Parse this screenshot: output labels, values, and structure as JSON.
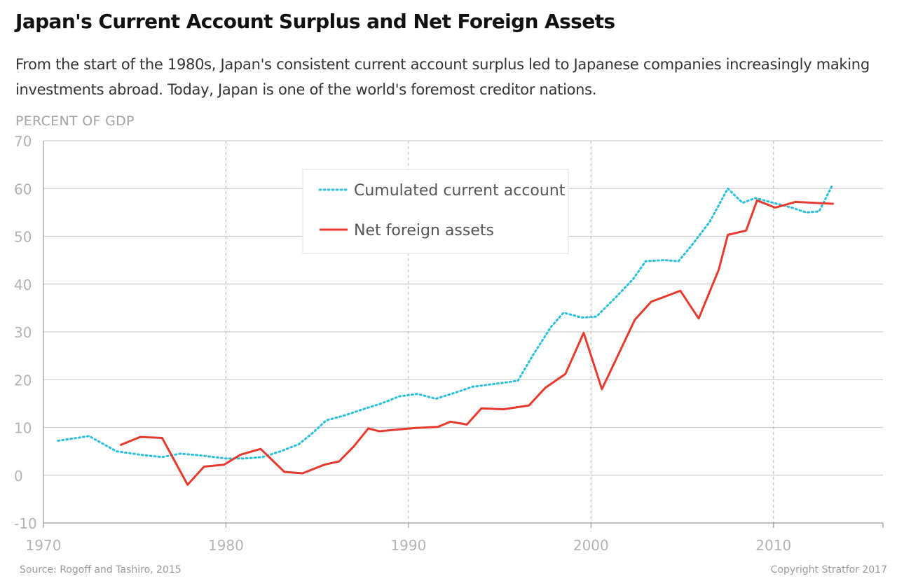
{
  "header": {
    "title": "Japan's Current Account Surplus and Net Foreign Assets",
    "subtitle": "From the start of the 1980s, Japan's consistent current account surplus led to Japanese companies increasingly making investments abroad. Today, Japan is one of the world's foremost creditor nations."
  },
  "footer": {
    "source": "Source: Rogoff and Tashiro, 2015",
    "copyright": "Copyright Stratfor 2017"
  },
  "chart_data": {
    "type": "line",
    "ylabel": "PERCENT OF GDP",
    "xlim": [
      1970,
      2016
    ],
    "ylim": [
      -10,
      70
    ],
    "x_ticks": [
      1970,
      1980,
      1990,
      2000,
      2010
    ],
    "y_ticks": [
      -10,
      0,
      10,
      20,
      30,
      40,
      50,
      60,
      70
    ],
    "grid": {
      "horizontal": true,
      "vertical_dashed": true
    },
    "legend_position": "top-center",
    "series": [
      {
        "name": "Cumulated current account",
        "color": "#2bbfd9",
        "style": "dotted",
        "points": [
          [
            1970.8,
            7.2
          ],
          [
            1972.5,
            8.2
          ],
          [
            1974.0,
            5.0
          ],
          [
            1975.5,
            4.2
          ],
          [
            1976.5,
            3.8
          ],
          [
            1977.5,
            4.5
          ],
          [
            1978.5,
            4.2
          ],
          [
            1980.0,
            3.5
          ],
          [
            1981.0,
            3.5
          ],
          [
            1982.0,
            3.8
          ],
          [
            1983.0,
            5.0
          ],
          [
            1984.0,
            6.5
          ],
          [
            1984.8,
            9.0
          ],
          [
            1985.5,
            11.5
          ],
          [
            1986.5,
            12.5
          ],
          [
            1987.5,
            13.8
          ],
          [
            1988.5,
            15.0
          ],
          [
            1989.5,
            16.5
          ],
          [
            1990.5,
            17.0
          ],
          [
            1991.5,
            16.0
          ],
          [
            1992.5,
            17.2
          ],
          [
            1993.5,
            18.5
          ],
          [
            1994.5,
            19.0
          ],
          [
            1995.5,
            19.5
          ],
          [
            1996.0,
            19.8
          ],
          [
            1996.8,
            25.0
          ],
          [
            1997.8,
            31.0
          ],
          [
            1998.5,
            34.0
          ],
          [
            1999.5,
            33.0
          ],
          [
            2000.3,
            33.2
          ],
          [
            2001.3,
            37.0
          ],
          [
            2002.3,
            41.0
          ],
          [
            2003.0,
            44.8
          ],
          [
            2004.0,
            45.0
          ],
          [
            2004.8,
            44.8
          ],
          [
            2005.5,
            48.0
          ],
          [
            2006.5,
            53.0
          ],
          [
            2007.5,
            60.0
          ],
          [
            2008.3,
            57.0
          ],
          [
            2009.0,
            58.0
          ],
          [
            2010.0,
            57.0
          ],
          [
            2011.0,
            56.0
          ],
          [
            2011.8,
            55.0
          ],
          [
            2012.5,
            55.2
          ],
          [
            2013.2,
            60.5
          ]
        ]
      },
      {
        "name": "Net foreign assets",
        "color": "#e63a2e",
        "style": "solid",
        "points": [
          [
            1974.2,
            6.3
          ],
          [
            1975.3,
            8.0
          ],
          [
            1976.5,
            7.8
          ],
          [
            1977.9,
            -2.0
          ],
          [
            1978.8,
            1.8
          ],
          [
            1979.9,
            2.2
          ],
          [
            1980.8,
            4.3
          ],
          [
            1981.9,
            5.5
          ],
          [
            1983.2,
            0.7
          ],
          [
            1984.2,
            0.4
          ],
          [
            1985.4,
            2.2
          ],
          [
            1986.2,
            2.9
          ],
          [
            1987.0,
            6.0
          ],
          [
            1987.8,
            9.8
          ],
          [
            1988.4,
            9.2
          ],
          [
            1989.5,
            9.6
          ],
          [
            1990.4,
            9.9
          ],
          [
            1991.6,
            10.1
          ],
          [
            1992.3,
            11.2
          ],
          [
            1993.2,
            10.6
          ],
          [
            1994.0,
            14.0
          ],
          [
            1995.2,
            13.8
          ],
          [
            1996.6,
            14.6
          ],
          [
            1997.5,
            18.3
          ],
          [
            1998.6,
            21.2
          ],
          [
            1999.6,
            29.8
          ],
          [
            2000.6,
            18.0
          ],
          [
            2002.4,
            32.5
          ],
          [
            2003.3,
            36.3
          ],
          [
            2004.9,
            38.6
          ],
          [
            2005.9,
            32.8
          ],
          [
            2007.0,
            43.0
          ],
          [
            2007.5,
            50.3
          ],
          [
            2008.5,
            51.2
          ],
          [
            2009.1,
            57.5
          ],
          [
            2010.1,
            56.0
          ],
          [
            2011.2,
            57.2
          ],
          [
            2013.3,
            56.8
          ]
        ]
      }
    ]
  }
}
